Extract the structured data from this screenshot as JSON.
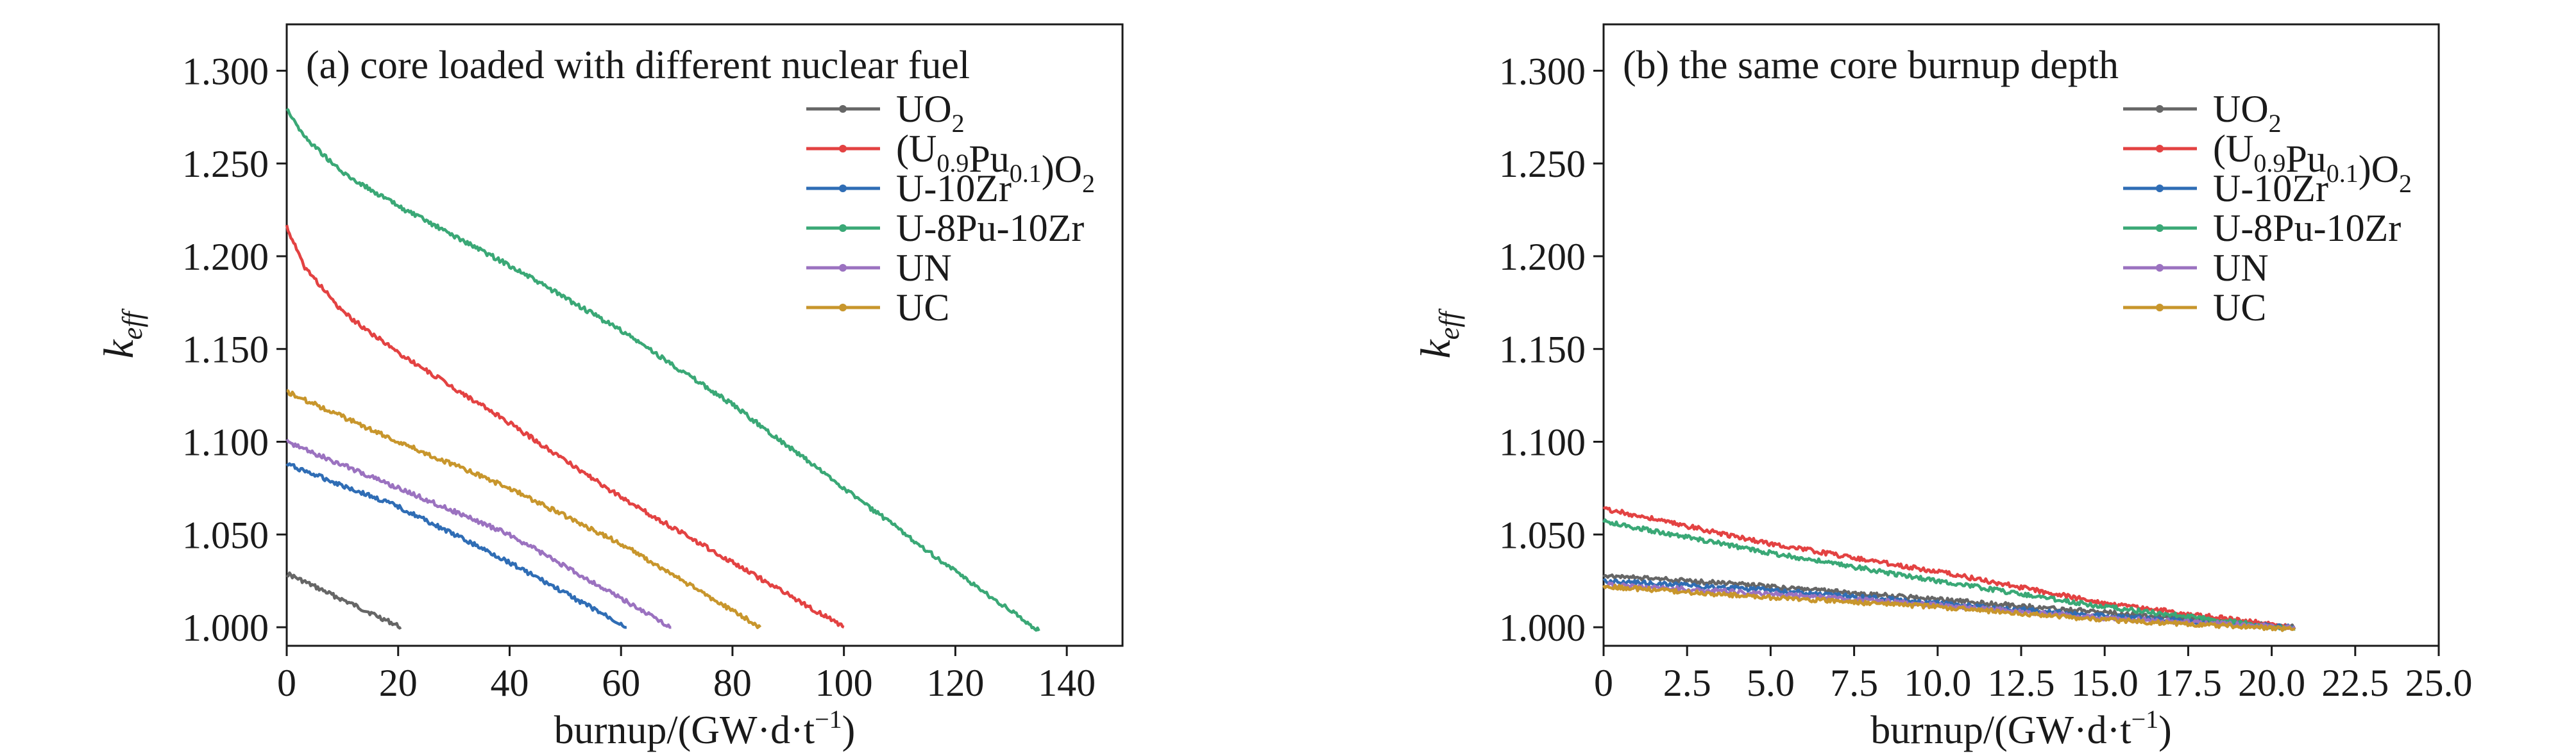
{
  "chart_data": [
    {
      "type": "line",
      "title": "(a) core loaded with different nuclear fuel",
      "xlabel": "burnup/(GW·d·t⁻¹)",
      "ylabel": "k_eff",
      "xlim": [
        0,
        150
      ],
      "ylim": [
        0.99,
        1.325
      ],
      "xticks": [
        "0",
        "20",
        "40",
        "60",
        "80",
        "100",
        "120",
        "140"
      ],
      "yticks": [
        "1.000",
        "1.050",
        "1.100",
        "1.150",
        "1.200",
        "1.250",
        "1.300"
      ],
      "grid": false,
      "legend": "top-right",
      "series": [
        {
          "name": "UO₂",
          "color": "#666666",
          "x": [
            0,
            20.5
          ],
          "y": [
            1.029,
            1.0
          ]
        },
        {
          "name": "(U₀.₉Pu₀.₁)O₂",
          "color": "#e34242",
          "x": [
            0,
            3,
            10,
            20,
            40,
            60,
            80,
            100
          ],
          "y": [
            1.216,
            1.195,
            1.17,
            1.148,
            1.11,
            1.07,
            1.035,
            1.0
          ]
        },
        {
          "name": "U-10Zr",
          "color": "#2f6db5",
          "x": [
            0,
            20,
            40,
            61
          ],
          "y": [
            1.088,
            1.065,
            1.035,
            1.0
          ]
        },
        {
          "name": "U-8Pu-10Zr",
          "color": "#3aa876",
          "x": [
            0,
            3,
            10,
            20,
            40,
            60,
            80,
            100,
            120,
            135
          ],
          "y": [
            1.28,
            1.265,
            1.245,
            1.227,
            1.195,
            1.16,
            1.12,
            1.075,
            1.03,
            0.998
          ]
        },
        {
          "name": "UN",
          "color": "#9b72c0",
          "x": [
            0,
            20,
            40,
            69
          ],
          "y": [
            1.1,
            1.075,
            1.05,
            1.0
          ]
        },
        {
          "name": "UC",
          "color": "#c8962c",
          "x": [
            0,
            20,
            40,
            60,
            85
          ],
          "y": [
            1.127,
            1.1,
            1.075,
            1.045,
            1.0
          ]
        }
      ]
    },
    {
      "type": "line",
      "title": "(b) the same core burnup depth",
      "xlabel": "burnup/(GW·d·t⁻¹)",
      "ylabel": "k_eff",
      "xlim": [
        0,
        25
      ],
      "ylim": [
        0.99,
        1.325
      ],
      "xticks": [
        "0",
        "2.5",
        "5.0",
        "7.5",
        "10.0",
        "12.5",
        "15.0",
        "17.5",
        "20.0",
        "22.5",
        "25.0"
      ],
      "yticks": [
        "1.000",
        "1.050",
        "1.100",
        "1.150",
        "1.200",
        "1.250",
        "1.300"
      ],
      "grid": false,
      "legend": "top-right",
      "series": [
        {
          "name": "UO₂",
          "color": "#666666",
          "x": [
            0,
            5,
            10,
            15,
            20.7
          ],
          "y": [
            1.028,
            1.022,
            1.015,
            1.008,
            1.0
          ]
        },
        {
          "name": "(U₀.₉Pu₀.₁)O₂",
          "color": "#e34242",
          "x": [
            0,
            5,
            10,
            15,
            20.7
          ],
          "y": [
            1.064,
            1.045,
            1.03,
            1.013,
            1.0
          ]
        },
        {
          "name": "U-10Zr",
          "color": "#2f6db5",
          "x": [
            0,
            5,
            10,
            15,
            20.7
          ],
          "y": [
            1.025,
            1.02,
            1.013,
            1.006,
            1.0
          ]
        },
        {
          "name": "U-8Pu-10Zr",
          "color": "#3aa876",
          "x": [
            0,
            5,
            10,
            15,
            20.7
          ],
          "y": [
            1.057,
            1.04,
            1.025,
            1.011,
            0.999
          ]
        },
        {
          "name": "UN",
          "color": "#9b72c0",
          "x": [
            0,
            5,
            10,
            15,
            20.7
          ],
          "y": [
            1.023,
            1.018,
            1.012,
            1.005,
            1.0
          ]
        },
        {
          "name": "UC",
          "color": "#c8962c",
          "x": [
            0,
            5,
            10,
            15,
            20.7
          ],
          "y": [
            1.022,
            1.016,
            1.011,
            1.004,
            0.999
          ]
        }
      ]
    }
  ]
}
